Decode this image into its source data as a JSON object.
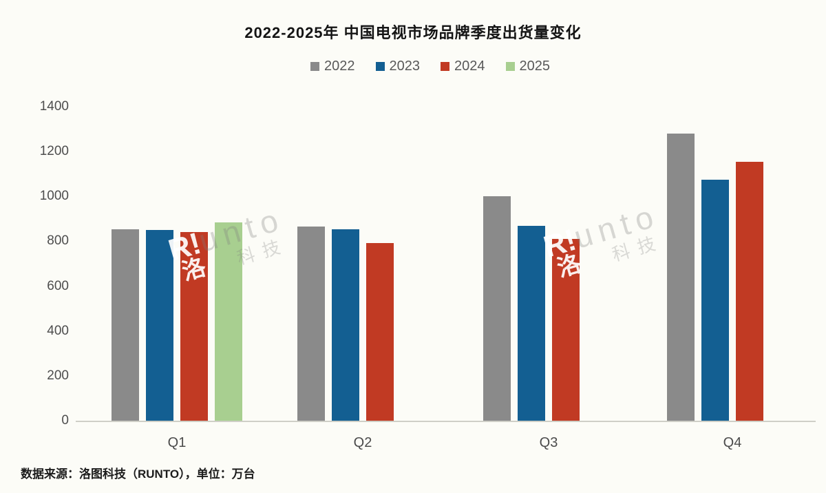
{
  "page": {
    "background": "#fcfcf7",
    "footer_note": "数据来源：洛图科技（RUNTO），单位：万台"
  },
  "chart_data": {
    "type": "bar",
    "title": "2022-2025年 中国电视市场品牌季度出货量变化",
    "unit": "万台",
    "source": "洛图科技（RUNTO）",
    "categories": [
      "Q1",
      "Q2",
      "Q3",
      "Q4"
    ],
    "series": [
      {
        "name": "2022",
        "color": "#8a8a8a",
        "values": [
          855,
          865,
          1000,
          1280
        ]
      },
      {
        "name": "2023",
        "color": "#135f92",
        "values": [
          850,
          855,
          870,
          1076
        ]
      },
      {
        "name": "2024",
        "color": "#c13a23",
        "values": [
          840,
          792,
          811,
          1154
        ]
      },
      {
        "name": "2025",
        "color": "#a8cf90",
        "values": [
          883,
          null,
          null,
          null
        ]
      }
    ],
    "ylim": [
      0,
      1400
    ],
    "ytick_step": 200,
    "ytick_labels": [
      "0",
      "200",
      "400",
      "600",
      "800",
      "1000",
      "1200",
      "1400"
    ],
    "grid": false,
    "legend_position": "top"
  },
  "watermark": {
    "latin_white": "R!",
    "latin_gray": "unto",
    "cn_char": "洛",
    "cn_suffix": "科技"
  }
}
